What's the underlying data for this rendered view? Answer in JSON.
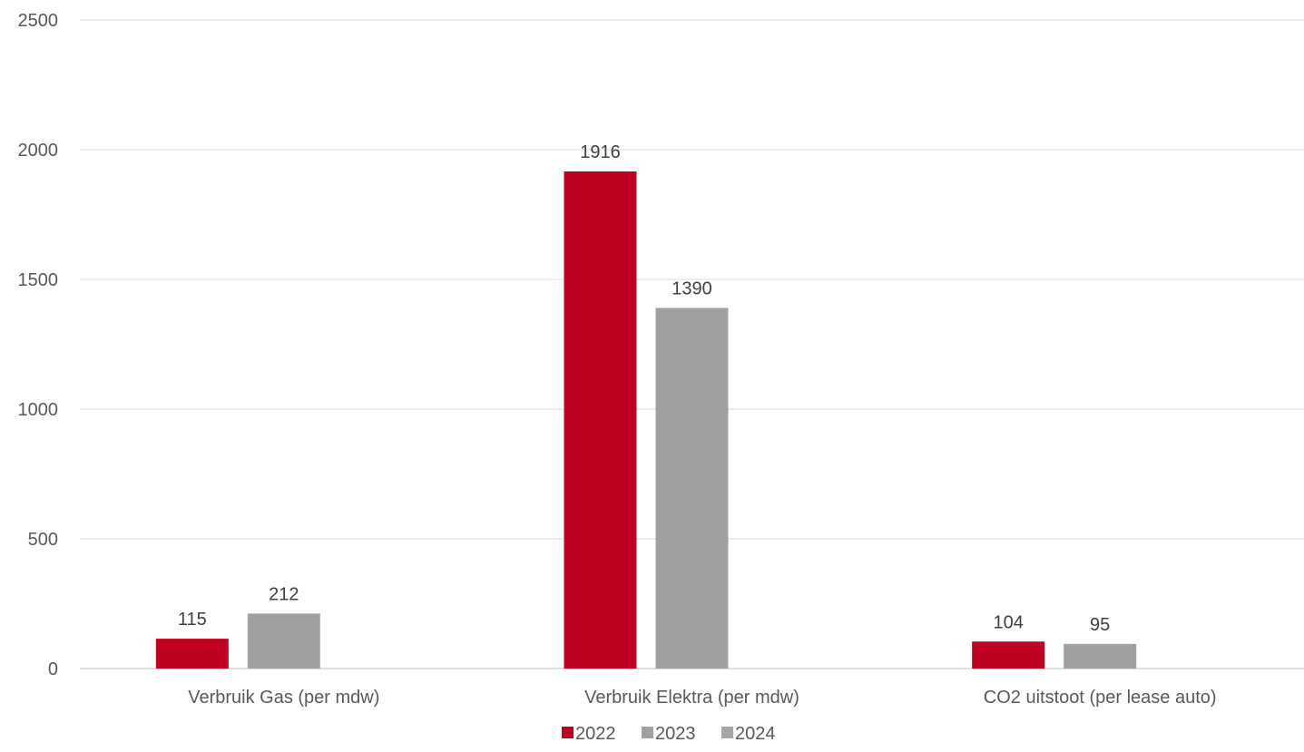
{
  "chart_data": {
    "type": "bar",
    "title": "",
    "xlabel": "",
    "ylabel": "",
    "categories": [
      "Verbruik Gas (per mdw)",
      "Verbruik Elektra (per mdw)",
      "CO2 uitstoot (per lease auto)"
    ],
    "series": [
      {
        "name": "2022",
        "color": "#C00020",
        "values": [
          115,
          1916,
          104
        ]
      },
      {
        "name": "2023",
        "color": "#A0A0A0",
        "values": [
          212,
          1390,
          95
        ]
      },
      {
        "name": "2024",
        "color": "#A6A6A6",
        "values": [
          null,
          null,
          null
        ]
      }
    ],
    "ylim": [
      0,
      2500
    ],
    "yticks": [
      0,
      500,
      1000,
      1500,
      2000,
      2500
    ],
    "grid": true,
    "legend_position": "bottom"
  }
}
